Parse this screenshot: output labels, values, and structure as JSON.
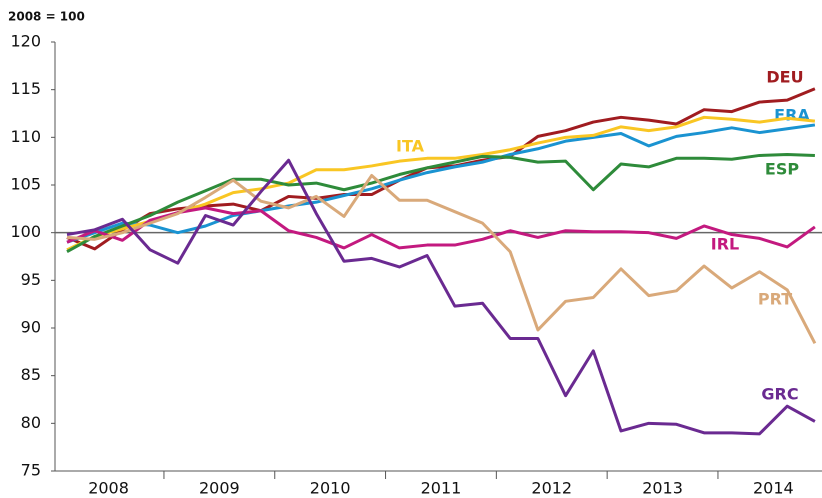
{
  "chart_data": {
    "type": "line",
    "y_title": "2008 = 100",
    "categories": [
      null,
      "2008",
      null,
      null,
      null,
      "2009",
      null,
      null,
      null,
      "2010",
      null,
      null,
      null,
      "2011",
      null,
      null,
      null,
      "2012",
      null,
      null,
      null,
      "2013",
      null,
      null,
      null,
      "2014",
      null,
      null
    ],
    "ylim": [
      75,
      120
    ],
    "yticks": [
      75,
      80,
      85,
      90,
      95,
      100,
      105,
      110,
      115,
      120
    ],
    "reference_line": 100,
    "grid": false,
    "series": [
      {
        "name": "DEU",
        "color": "#a01c20",
        "values": [
          99.5,
          98.3,
          100.3,
          102,
          102.5,
          102.8,
          103,
          102.3,
          103.8,
          103.6,
          104,
          104,
          105.5,
          106.8,
          107,
          107.6,
          108,
          110.1,
          110.7,
          111.6,
          112.1,
          111.8,
          111.4,
          112.9,
          112.7,
          113.7,
          113.9,
          115.1
        ]
      },
      {
        "name": "FRA",
        "color": "#1a93d1",
        "values": [
          99,
          100,
          101,
          100.8,
          100,
          100.7,
          101.8,
          102.3,
          102.8,
          103.2,
          103.9,
          104.6,
          105.5,
          106.3,
          106.9,
          107.4,
          108.2,
          108.8,
          109.6,
          110,
          110.4,
          109.1,
          110.1,
          110.5,
          111,
          110.5,
          110.9,
          111.3
        ]
      },
      {
        "name": "ITA",
        "color": "#f9c623",
        "values": [
          98.2,
          99.6,
          100.4,
          101.2,
          102.1,
          103,
          104.2,
          104.6,
          105.2,
          106.6,
          106.6,
          107,
          107.5,
          107.8,
          107.8,
          108.2,
          108.7,
          109.4,
          110,
          110.2,
          111.1,
          110.7,
          111.1,
          112.1,
          111.9,
          111.6,
          112,
          111.7
        ]
      },
      {
        "name": "ESP",
        "color": "#2e8b3a",
        "values": [
          98,
          99.6,
          100.7,
          101.8,
          103.2,
          104.4,
          105.6,
          105.6,
          105,
          105.2,
          104.5,
          105.2,
          106.1,
          106.8,
          107.4,
          108,
          107.9,
          107.4,
          107.5,
          104.5,
          107.2,
          106.9,
          107.8,
          107.8,
          107.7,
          108.1,
          108.2,
          108.1
        ]
      },
      {
        "name": "IRL",
        "color": "#c3197f",
        "values": [
          99,
          100.2,
          99.2,
          101.3,
          102.1,
          102.6,
          102,
          102.3,
          100.2,
          99.5,
          98.4,
          99.8,
          98.4,
          98.7,
          98.7,
          99.3,
          100.2,
          99.5,
          100.2,
          100.1,
          100.1,
          100,
          99.4,
          100.7,
          99.8,
          99.4,
          98.5,
          100.6
        ]
      },
      {
        "name": "PRT",
        "color": "#d9a97a",
        "values": [
          99.5,
          99.3,
          100,
          101,
          102,
          103.7,
          105.5,
          103.3,
          102.6,
          103.8,
          101.7,
          106,
          103.4,
          103.4,
          102.2,
          101,
          98,
          89.8,
          92.8,
          93.2,
          96.2,
          93.4,
          93.9,
          96.5,
          94.2,
          95.9,
          94,
          88.4
        ]
      },
      {
        "name": "GRC",
        "color": "#6a2a91",
        "values": [
          99.8,
          100.3,
          101.4,
          98.2,
          96.8,
          101.8,
          100.8,
          104.3,
          107.6,
          102,
          97,
          97.3,
          96.4,
          97.6,
          92.3,
          92.6,
          88.9,
          88.9,
          82.9,
          87.6,
          79.2,
          80,
          79.9,
          79,
          79,
          78.9,
          81.8,
          80.2
        ]
      }
    ]
  }
}
